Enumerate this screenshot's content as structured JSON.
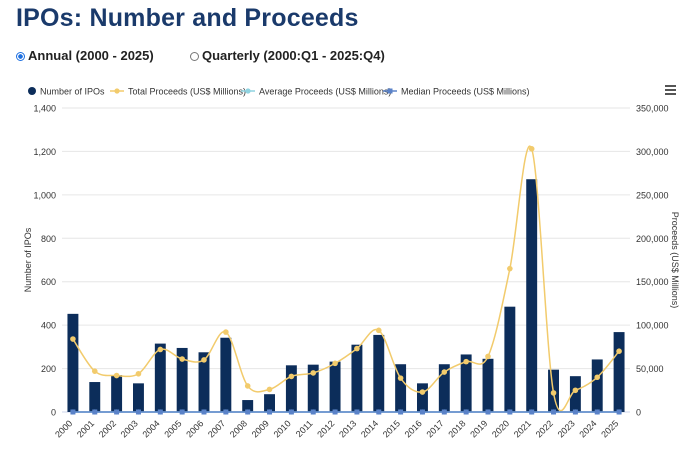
{
  "page": {
    "title": "IPOs: Number and Proceeds",
    "radio_annual": "Annual (2000 - 2025)",
    "radio_quarterly": "Quarterly (2000:Q1 - 2025:Q4)",
    "selected": "annual",
    "menu_icon": "hamburger-menu-icon"
  },
  "chart_data": {
    "type": "bar",
    "categories": [
      "2000",
      "2001",
      "2002",
      "2003",
      "2004",
      "2005",
      "2006",
      "2007",
      "2008",
      "2009",
      "2010",
      "2011",
      "2012",
      "2013",
      "2014",
      "2015",
      "2016",
      "2017",
      "2018",
      "2019",
      "2020",
      "2021",
      "2022",
      "2023",
      "2024",
      "2025"
    ],
    "series": [
      {
        "name": "Number of IPOs",
        "type": "bar",
        "axis": "left",
        "color": "#0c2d5a",
        "values": [
          452,
          138,
          170,
          132,
          315,
          295,
          275,
          342,
          55,
          82,
          215,
          218,
          232,
          310,
          355,
          220,
          132,
          220,
          265,
          245,
          485,
          1072,
          195,
          165,
          242,
          368
        ]
      },
      {
        "name": "Total Proceeds (US$ Millions)",
        "type": "line",
        "axis": "right",
        "color": "#f2cb6c",
        "values": [
          84000,
          47000,
          42000,
          44000,
          72000,
          61000,
          60000,
          92000,
          30000,
          26000,
          41000,
          45000,
          56000,
          73000,
          94000,
          39000,
          23000,
          46000,
          58000,
          64000,
          165000,
          303000,
          22000,
          25000,
          40000,
          70000
        ]
      },
      {
        "name": "Average Proceeds (US$ Millions)",
        "type": "line",
        "axis": "right",
        "color": "#8fd3e0",
        "values": [
          0,
          0,
          0,
          0,
          0,
          0,
          0,
          0,
          0,
          0,
          0,
          0,
          0,
          0,
          0,
          0,
          0,
          0,
          0,
          0,
          0,
          0,
          0,
          0,
          0,
          0
        ]
      },
      {
        "name": "Median Proceeds (US$ Millions)",
        "type": "line",
        "axis": "right",
        "color": "#5a82c8",
        "values": [
          0,
          0,
          0,
          0,
          0,
          0,
          0,
          0,
          0,
          0,
          0,
          0,
          0,
          0,
          0,
          0,
          0,
          0,
          0,
          0,
          0,
          0,
          0,
          0,
          0,
          0
        ]
      }
    ],
    "ylabel": "Number of IPOs",
    "y2label": "Proceeds (US$ Millions)",
    "ylim": [
      0,
      1400
    ],
    "y2lim": [
      0,
      350000
    ],
    "yticks": [
      "0",
      "200",
      "400",
      "600",
      "800",
      "1,000",
      "1,200",
      "1,400"
    ],
    "y2ticks": [
      "0",
      "50,000",
      "100,000",
      "150,000",
      "200,000",
      "250,000",
      "300,000",
      "350,000"
    ],
    "legend_position": "top",
    "grid": true
  }
}
